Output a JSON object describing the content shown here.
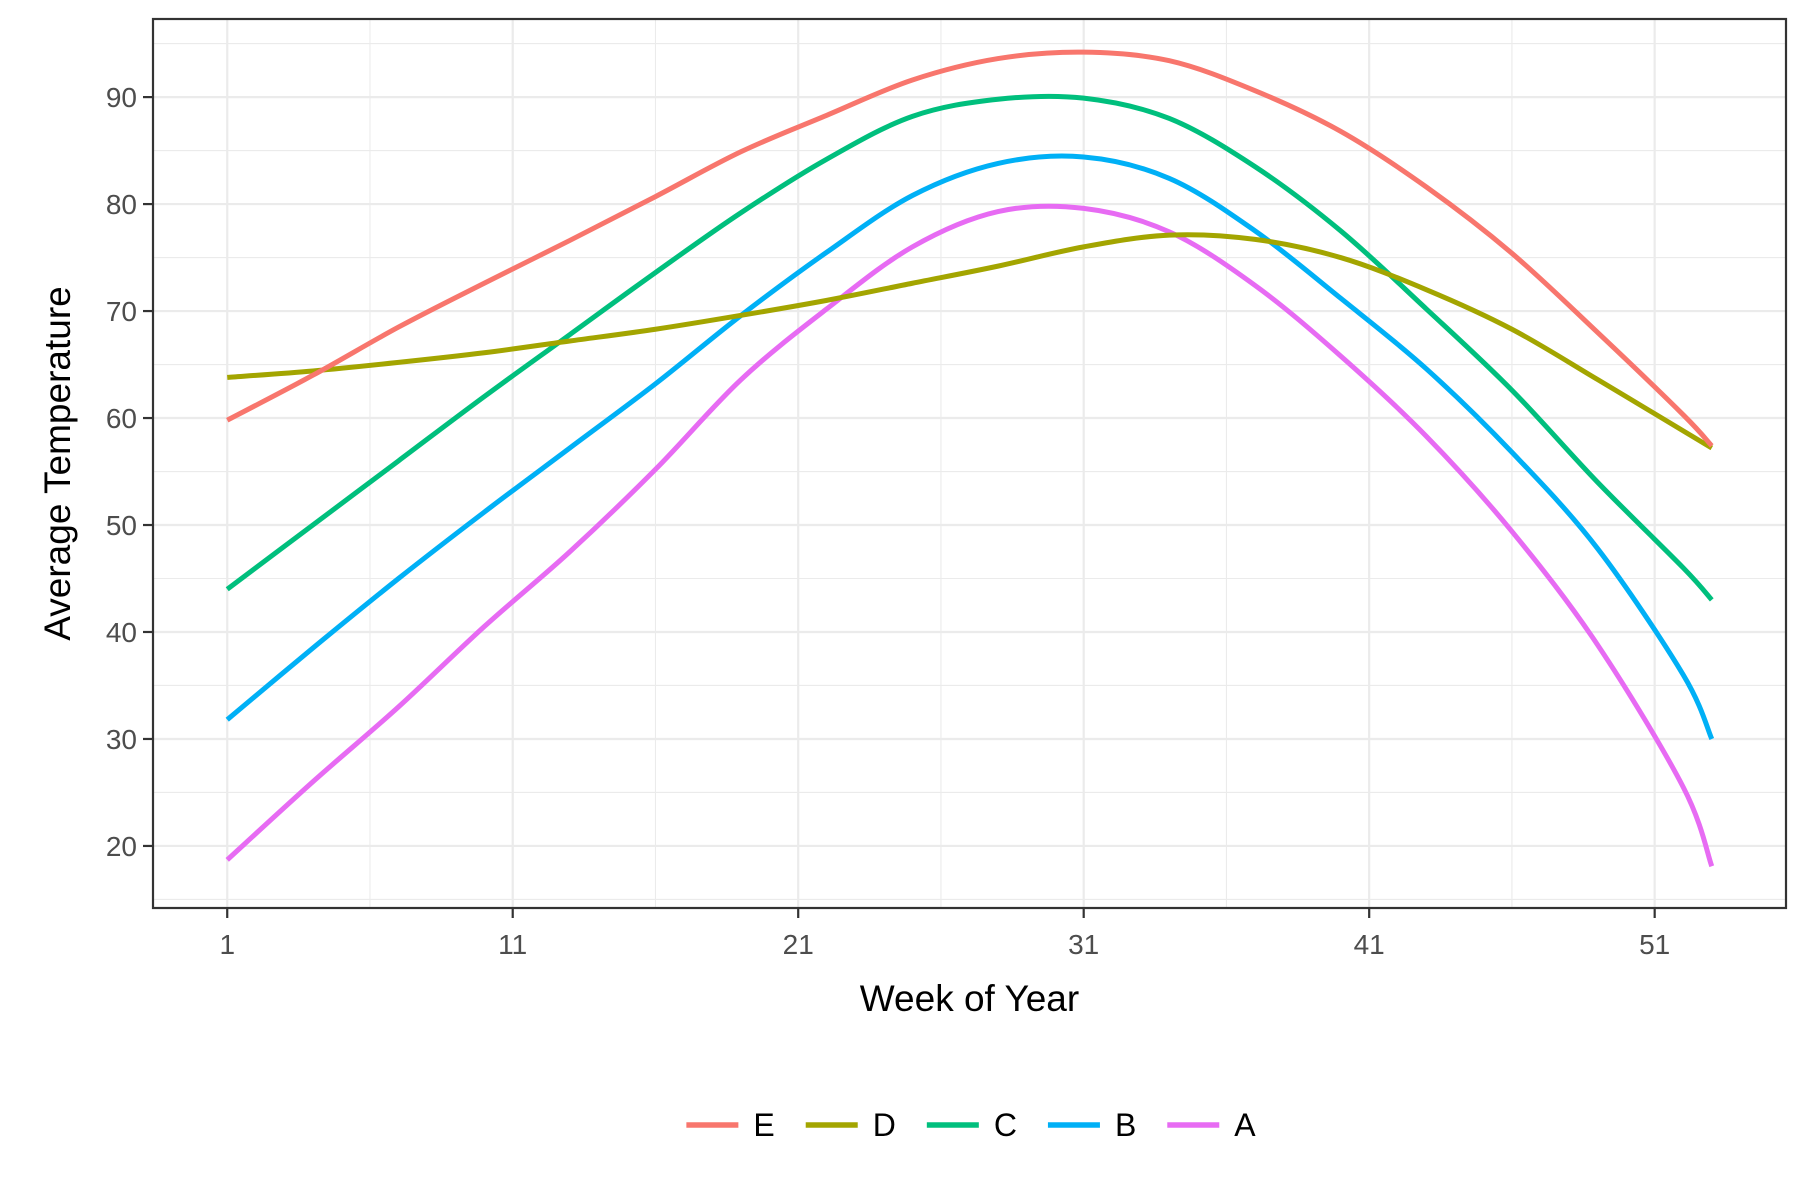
{
  "chart_data": {
    "type": "line",
    "xlabel": "Week of Year",
    "ylabel": "Average Temperature",
    "x_ticks": [
      1,
      11,
      21,
      31,
      41,
      51
    ],
    "y_ticks": [
      20,
      30,
      40,
      50,
      60,
      70,
      80,
      90
    ],
    "xlim": [
      -1.6,
      55.6
    ],
    "ylim": [
      14.2,
      97.3
    ],
    "grid": true,
    "legend_position": "bottom",
    "x": [
      1,
      4,
      7,
      10,
      13,
      16,
      19,
      22,
      25,
      28,
      31,
      34,
      37,
      40,
      43,
      46,
      49,
      52,
      53
    ],
    "series": [
      {
        "name": "E",
        "color": "#F8766D",
        "values": [
          59.8,
          64.0,
          68.5,
          72.6,
          76.6,
          80.7,
          84.9,
          88.3,
          91.6,
          93.6,
          94.2,
          93.4,
          90.6,
          86.8,
          81.6,
          75.4,
          68.0,
          60.3,
          57.4
        ]
      },
      {
        "name": "D",
        "color": "#A3A500",
        "values": [
          63.8,
          64.4,
          65.2,
          66.1,
          67.2,
          68.3,
          69.6,
          71.0,
          72.6,
          74.2,
          76.0,
          77.1,
          76.7,
          75.0,
          72.0,
          68.3,
          63.6,
          58.8,
          57.2
        ]
      },
      {
        "name": "C",
        "color": "#00BF7D",
        "values": [
          44.0,
          50.0,
          56.0,
          62.0,
          67.8,
          73.6,
          79.2,
          84.2,
          88.2,
          89.8,
          89.9,
          88.0,
          83.5,
          77.5,
          70.2,
          62.6,
          54.0,
          46.0,
          43.0
        ]
      },
      {
        "name": "B",
        "color": "#00B0F6",
        "values": [
          31.8,
          38.5,
          45.0,
          51.2,
          57.2,
          63.2,
          69.6,
          75.5,
          80.8,
          83.8,
          84.4,
          82.4,
          77.5,
          71.2,
          64.6,
          56.8,
          47.8,
          36.0,
          30.0
        ]
      },
      {
        "name": "A",
        "color": "#E76BF3",
        "values": [
          18.7,
          26.0,
          33.0,
          40.5,
          47.5,
          55.2,
          63.6,
          70.2,
          76.0,
          79.3,
          79.6,
          77.4,
          72.4,
          65.8,
          58.3,
          49.4,
          38.8,
          25.5,
          18.1
        ]
      }
    ],
    "legend_order": [
      "E",
      "D",
      "C",
      "B",
      "A"
    ]
  }
}
